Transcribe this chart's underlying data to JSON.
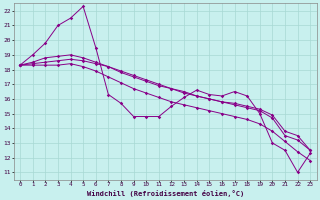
{
  "xlabel": "Windchill (Refroidissement éolien,°C)",
  "background_color": "#c8f0ee",
  "grid_color": "#a8d8d4",
  "line_color": "#880088",
  "ylim": [
    10.5,
    22.5
  ],
  "xlim": [
    -0.5,
    23.5
  ],
  "yticks": [
    11,
    12,
    13,
    14,
    15,
    16,
    17,
    18,
    19,
    20,
    21,
    22
  ],
  "xticks": [
    0,
    1,
    2,
    3,
    4,
    5,
    6,
    7,
    8,
    9,
    10,
    11,
    12,
    13,
    14,
    15,
    16,
    17,
    18,
    19,
    20,
    21,
    22,
    23
  ],
  "series": [
    [
      18.3,
      19.0,
      19.8,
      21.0,
      21.5,
      22.3,
      19.5,
      16.3,
      15.7,
      14.8,
      14.8,
      14.8,
      15.5,
      16.1,
      16.6,
      16.3,
      16.2,
      16.5,
      16.2,
      15.0,
      13.0,
      12.5,
      11.0,
      12.3
    ],
    [
      18.3,
      18.3,
      18.3,
      18.3,
      18.4,
      18.2,
      17.9,
      17.5,
      17.1,
      16.7,
      16.4,
      16.1,
      15.8,
      15.6,
      15.4,
      15.2,
      15.0,
      14.8,
      14.6,
      14.3,
      13.8,
      13.1,
      12.4,
      11.8
    ],
    [
      18.3,
      18.5,
      18.8,
      18.9,
      19.0,
      18.8,
      18.5,
      18.2,
      17.8,
      17.5,
      17.2,
      16.9,
      16.7,
      16.4,
      16.2,
      16.0,
      15.8,
      15.7,
      15.5,
      15.3,
      14.9,
      13.8,
      13.5,
      12.5
    ],
    [
      18.3,
      18.4,
      18.5,
      18.6,
      18.7,
      18.6,
      18.4,
      18.2,
      17.9,
      17.6,
      17.3,
      17.0,
      16.7,
      16.5,
      16.2,
      16.0,
      15.8,
      15.6,
      15.4,
      15.2,
      14.7,
      13.5,
      13.2,
      12.5
    ]
  ]
}
